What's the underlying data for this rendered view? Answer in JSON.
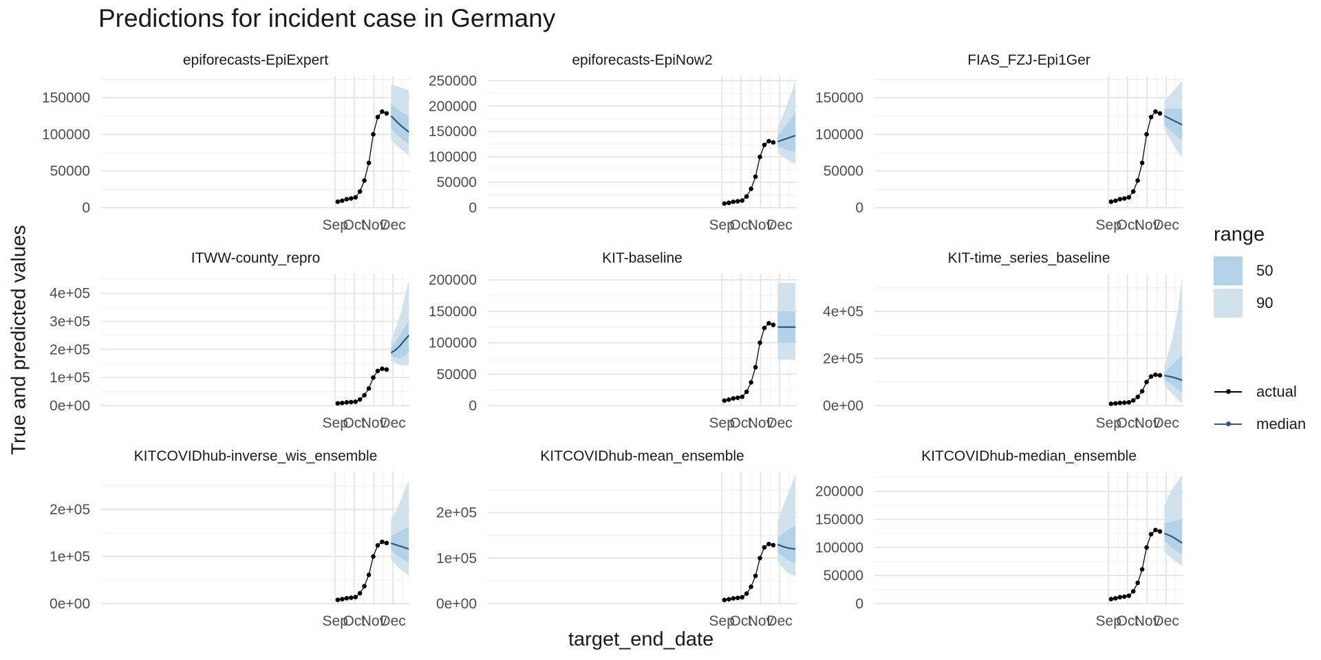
{
  "title": "Predictions for incident case in Germany",
  "x_axis_title": "target_end_date",
  "y_axis_title": "True and predicted values",
  "legend": {
    "range_title": "range",
    "ranges": [
      {
        "label": "50",
        "color": "#b4d2e7"
      },
      {
        "label": "90",
        "color": "#d2e2ec"
      }
    ],
    "lines": [
      {
        "label": "actual",
        "color": "#000000"
      },
      {
        "label": "median",
        "color": "#30587e"
      }
    ]
  },
  "chart_data": {
    "type": "line",
    "x_ticks": [
      "Sep",
      "Oct",
      "Nov",
      "Dec"
    ],
    "x_tick_dates": [
      "2020-09-01",
      "2020-10-01",
      "2020-11-01",
      "2020-12-01"
    ],
    "x_range": [
      "2019-08-29",
      "2020-12-28"
    ],
    "actual": {
      "dates": [
        "2020-09-05",
        "2020-09-12",
        "2020-09-19",
        "2020-09-26",
        "2020-10-03",
        "2020-10-10",
        "2020-10-17",
        "2020-10-24",
        "2020-10-31",
        "2020-11-07",
        "2020-11-14",
        "2020-11-21"
      ],
      "values": [
        8000,
        9500,
        11500,
        12500,
        14000,
        22000,
        37000,
        61000,
        100000,
        123500,
        131000,
        128500
      ]
    },
    "forecast_dates": [
      "2020-11-28",
      "2020-12-05",
      "2020-12-12",
      "2020-12-19",
      "2020-12-26"
    ],
    "panels": [
      {
        "name": "epiforecasts-EpiExpert",
        "ylim": [
          0,
          180000
        ],
        "y_ticks": [
          0,
          50000,
          100000,
          150000
        ],
        "y_tick_labels": [
          "0",
          "50000",
          "100000",
          "150000"
        ],
        "median": [
          125000,
          119000,
          113000,
          108000,
          103000
        ],
        "q50": [
          [
            108000,
            142000
          ],
          [
            101000,
            137000
          ],
          [
            95000,
            132000
          ],
          [
            91000,
            128000
          ],
          [
            87000,
            124000
          ]
        ],
        "q90": [
          [
            92000,
            168000
          ],
          [
            86000,
            166000
          ],
          [
            81000,
            164000
          ],
          [
            76000,
            162000
          ],
          [
            71000,
            160000
          ]
        ]
      },
      {
        "name": "epiforecasts-EpiNow2",
        "ylim": [
          0,
          260000
        ],
        "y_ticks": [
          0,
          50000,
          100000,
          150000,
          200000,
          250000
        ],
        "y_tick_labels": [
          "0",
          "50000",
          "100000",
          "150000",
          "200000",
          "250000"
        ],
        "median": [
          130000,
          133000,
          136000,
          139000,
          142000
        ],
        "q50": [
          [
            120000,
            142000
          ],
          [
            117000,
            152000
          ],
          [
            114000,
            163000
          ],
          [
            112000,
            175000
          ],
          [
            110000,
            188000
          ]
        ],
        "q90": [
          [
            108000,
            158000
          ],
          [
            101000,
            178000
          ],
          [
            95000,
            200000
          ],
          [
            90000,
            224000
          ],
          [
            86000,
            250000
          ]
        ]
      },
      {
        "name": "FIAS_FZJ-Epi1Ger",
        "ylim": [
          0,
          180000
        ],
        "y_ticks": [
          0,
          50000,
          100000,
          150000
        ],
        "y_tick_labels": [
          "0",
          "50000",
          "100000",
          "150000"
        ],
        "median": [
          125000,
          122000,
          119000,
          116000,
          113000
        ],
        "q50": [
          [
            113000,
            135000
          ],
          [
            107000,
            135000
          ],
          [
            101000,
            135000
          ],
          [
            96000,
            135000
          ],
          [
            92000,
            135000
          ]
        ],
        "q90": [
          [
            107000,
            145000
          ],
          [
            96000,
            152000
          ],
          [
            86000,
            159000
          ],
          [
            76000,
            166000
          ],
          [
            68000,
            173000
          ]
        ]
      },
      {
        "name": "ITWW-county_repro",
        "ylim": [
          0,
          470000
        ],
        "y_ticks": [
          0,
          100000,
          200000,
          300000,
          400000
        ],
        "y_tick_labels": [
          "0e+00",
          "1e+05",
          "2e+05",
          "3e+05",
          "4e+05"
        ],
        "median": [
          188000,
          198000,
          213000,
          232000,
          250000
        ],
        "q50": [
          [
            178000,
            205000
          ],
          [
            172000,
            228000
          ],
          [
            168000,
            252000
          ],
          [
            175000,
            277000
          ],
          [
            192000,
            302000
          ]
        ],
        "q90": [
          [
            158000,
            228000
          ],
          [
            150000,
            275000
          ],
          [
            145000,
            320000
          ],
          [
            142000,
            380000
          ],
          [
            145000,
            445000
          ]
        ]
      },
      {
        "name": "KIT-baseline",
        "ylim": [
          0,
          210000
        ],
        "y_ticks": [
          0,
          50000,
          100000,
          150000,
          200000
        ],
        "y_tick_labels": [
          "0",
          "50000",
          "100000",
          "150000",
          "200000"
        ],
        "median": [
          125000,
          125000,
          125000,
          125000,
          125000
        ],
        "q50": [
          [
            100000,
            150000
          ],
          [
            100000,
            150000
          ],
          [
            100000,
            150000
          ],
          [
            100000,
            150000
          ],
          [
            100000,
            150000
          ]
        ],
        "q90": [
          [
            73000,
            195000
          ],
          [
            73000,
            195000
          ],
          [
            73000,
            195000
          ],
          [
            73000,
            195000
          ],
          [
            73000,
            195000
          ]
        ]
      },
      {
        "name": "KIT-time_series_baseline",
        "ylim": [
          0,
          560000
        ],
        "y_ticks": [
          0,
          200000,
          400000
        ],
        "y_tick_labels": [
          "0e+00",
          "2e+05",
          "4e+05"
        ],
        "median": [
          128000,
          124000,
          120000,
          114000,
          108000
        ],
        "q50": [
          [
            112000,
            140000
          ],
          [
            98000,
            158000
          ],
          [
            84000,
            178000
          ],
          [
            70000,
            196000
          ],
          [
            56000,
            215000
          ]
        ],
        "q90": [
          [
            90000,
            172000
          ],
          [
            65000,
            230000
          ],
          [
            45000,
            300000
          ],
          [
            25000,
            400000
          ],
          [
            10000,
            550000
          ]
        ]
      },
      {
        "name": "KITCOVIDhub-inverse_wis_ensemble",
        "ylim": [
          0,
          280000
        ],
        "y_ticks": [
          0,
          100000,
          200000
        ],
        "y_tick_labels": [
          "0e+00",
          "1e+05",
          "2e+05"
        ],
        "median": [
          128000,
          125000,
          122000,
          119000,
          116000
        ],
        "q50": [
          [
            113000,
            143000
          ],
          [
            105000,
            148000
          ],
          [
            98000,
            153000
          ],
          [
            92000,
            158000
          ],
          [
            87000,
            163000
          ]
        ],
        "q90": [
          [
            95000,
            178000
          ],
          [
            83000,
            195000
          ],
          [
            73000,
            215000
          ],
          [
            66000,
            238000
          ],
          [
            60000,
            262000
          ]
        ]
      },
      {
        "name": "KITCOVIDhub-mean_ensemble",
        "ylim": [
          0,
          290000
        ],
        "y_ticks": [
          0,
          100000,
          200000
        ],
        "y_tick_labels": [
          "0e+00",
          "1e+05",
          "2e+05"
        ],
        "median": [
          130000,
          126000,
          123000,
          121000,
          120000
        ],
        "q50": [
          [
            113000,
            145000
          ],
          [
            105000,
            152000
          ],
          [
            97000,
            160000
          ],
          [
            92000,
            167000
          ],
          [
            88000,
            173000
          ]
        ],
        "q90": [
          [
            92000,
            182000
          ],
          [
            80000,
            208000
          ],
          [
            70000,
            232000
          ],
          [
            64000,
            258000
          ],
          [
            60000,
            285000
          ]
        ]
      },
      {
        "name": "KITCOVIDhub-median_ensemble",
        "ylim": [
          0,
          235000
        ],
        "y_ticks": [
          0,
          50000,
          100000,
          150000,
          200000
        ],
        "y_tick_labels": [
          "0",
          "50000",
          "100000",
          "150000",
          "200000"
        ],
        "median": [
          125000,
          122000,
          118000,
          113000,
          108000
        ],
        "q50": [
          [
            112000,
            142000
          ],
          [
            105000,
            145000
          ],
          [
            98000,
            147000
          ],
          [
            92000,
            148000
          ],
          [
            87000,
            150000
          ]
        ],
        "q90": [
          [
            92000,
            175000
          ],
          [
            85000,
            193000
          ],
          [
            78000,
            207000
          ],
          [
            72000,
            218000
          ],
          [
            67000,
            228000
          ]
        ]
      }
    ]
  }
}
